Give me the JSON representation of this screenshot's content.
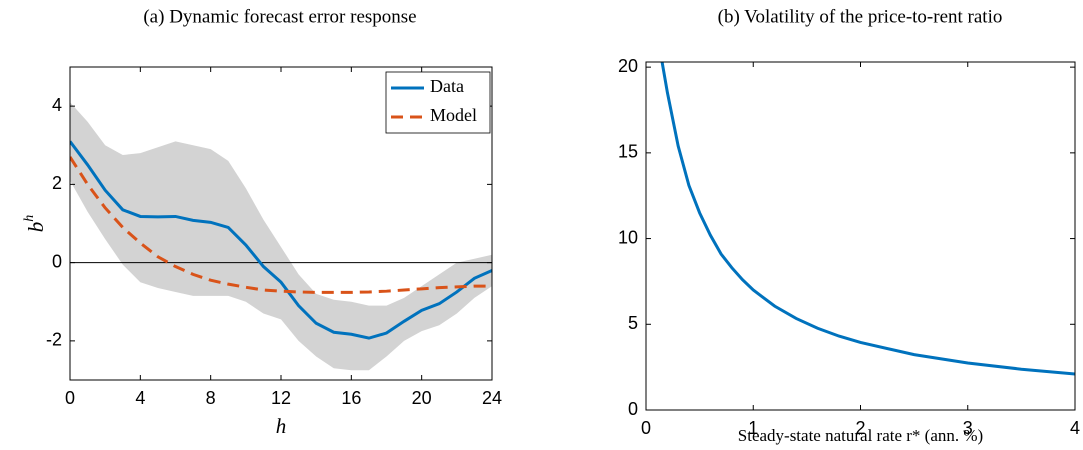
{
  "chart_data": [
    {
      "type": "line",
      "title": "(a) Dynamic forecast error response",
      "xlabel": "h",
      "ylabel": "b",
      "ylabel_superscript": "h",
      "x": [
        0,
        1,
        2,
        3,
        4,
        5,
        6,
        7,
        8,
        9,
        10,
        11,
        12,
        13,
        14,
        15,
        16,
        17,
        18,
        19,
        20,
        21,
        22,
        23,
        24
      ],
      "series": [
        {
          "name": "Data",
          "color": "#0072bd",
          "dash": false,
          "values": [
            3.1,
            2.5,
            1.85,
            1.35,
            1.18,
            1.17,
            1.18,
            1.08,
            1.03,
            0.9,
            0.45,
            -0.1,
            -0.5,
            -1.1,
            -1.55,
            -1.78,
            -1.83,
            -1.93,
            -1.8,
            -1.5,
            -1.22,
            -1.05,
            -0.75,
            -0.4,
            -0.2
          ]
        },
        {
          "name": "Model",
          "color": "#d95319",
          "dash": true,
          "values": [
            2.7,
            2.0,
            1.4,
            0.9,
            0.5,
            0.15,
            -0.1,
            -0.3,
            -0.45,
            -0.55,
            -0.63,
            -0.7,
            -0.73,
            -0.75,
            -0.76,
            -0.76,
            -0.76,
            -0.75,
            -0.73,
            -0.7,
            -0.67,
            -0.64,
            -0.62,
            -0.6,
            -0.6
          ]
        }
      ],
      "band": {
        "color": "#d3d3d3",
        "upper": [
          4.1,
          3.6,
          3.0,
          2.75,
          2.8,
          2.95,
          3.1,
          3.0,
          2.9,
          2.6,
          1.9,
          1.1,
          0.4,
          -0.3,
          -0.8,
          -0.95,
          -1.0,
          -1.1,
          -1.1,
          -0.9,
          -0.6,
          -0.3,
          0,
          0.1,
          0.2
        ],
        "lower": [
          2.1,
          1.3,
          0.6,
          -0.05,
          -0.5,
          -0.65,
          -0.75,
          -0.85,
          -0.85,
          -0.85,
          -1.0,
          -1.3,
          -1.45,
          -2.0,
          -2.4,
          -2.7,
          -2.75,
          -2.75,
          -2.4,
          -2.0,
          -1.75,
          -1.6,
          -1.3,
          -0.9,
          -0.6
        ]
      },
      "zero_line": true,
      "xlim": [
        0,
        24
      ],
      "xticks": [
        0,
        4,
        8,
        12,
        16,
        20,
        24
      ],
      "ylim": [
        -3,
        5
      ],
      "yticks": [
        -2,
        0,
        2,
        4
      ],
      "legend": "upper right"
    },
    {
      "type": "line",
      "title": "(b) Volatility of the price-to-rent ratio",
      "xlabel": "Steady-state natural rate r* (ann. %)",
      "x": [
        0.15,
        0.2,
        0.3,
        0.4,
        0.5,
        0.6,
        0.7,
        0.8,
        0.9,
        1,
        1.2,
        1.4,
        1.6,
        1.8,
        2,
        2.5,
        3,
        3.5,
        4
      ],
      "series": [
        {
          "color": "#0072bd",
          "dash": false,
          "values": [
            20.3,
            18.5,
            15.4,
            13.1,
            11.5,
            10.2,
            9.1,
            8.3,
            7.6,
            7.0,
            6.06,
            5.34,
            4.77,
            4.31,
            3.94,
            3.23,
            2.74,
            2.38,
            2.1
          ]
        }
      ],
      "xlim": [
        0,
        4
      ],
      "xticks": [
        0,
        1,
        2,
        3,
        4
      ],
      "ylim": [
        0,
        20.3
      ],
      "yticks": [
        0,
        5,
        10,
        15,
        20
      ]
    }
  ]
}
